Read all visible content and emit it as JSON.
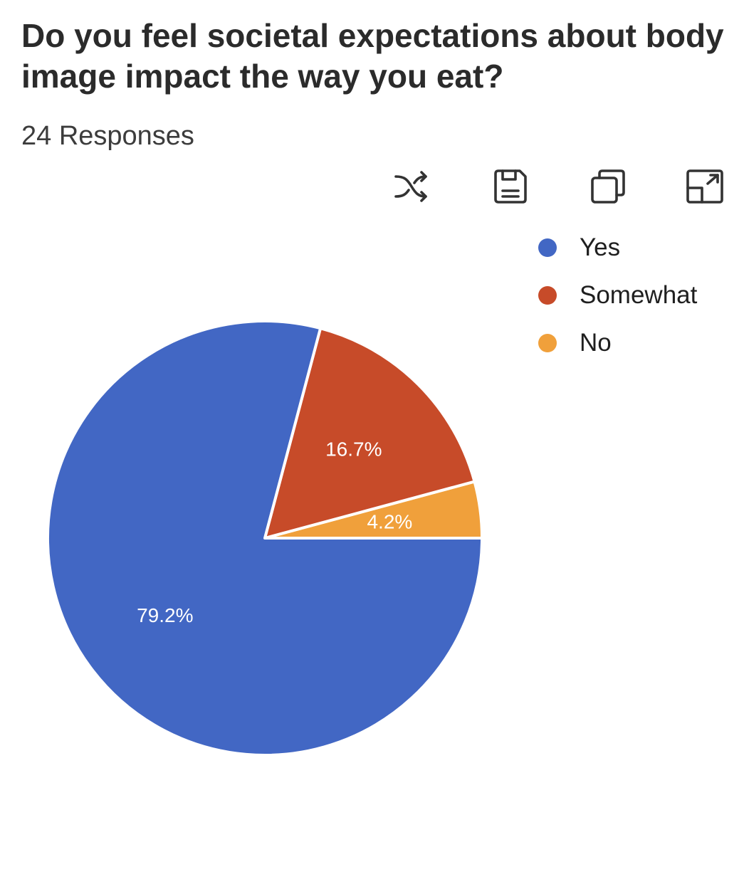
{
  "question": {
    "title": "Do you feel societal expectations about body image impact the way you eat?",
    "responses": "24 Responses"
  },
  "toolbar": {
    "items": [
      {
        "icon": "shuffle-icon"
      },
      {
        "icon": "save-icon"
      },
      {
        "icon": "copy-icon"
      },
      {
        "icon": "expand-icon"
      }
    ]
  },
  "chart_data": {
    "type": "pie",
    "categories": [
      "Yes",
      "Somewhat",
      "No"
    ],
    "values": [
      79.2,
      16.7,
      4.2
    ],
    "labels": [
      "79.2%",
      "16.7%",
      "4.2%"
    ],
    "colors": [
      "#4267c4",
      "#c74b29",
      "#f0a03b"
    ],
    "legend": "top-right"
  }
}
